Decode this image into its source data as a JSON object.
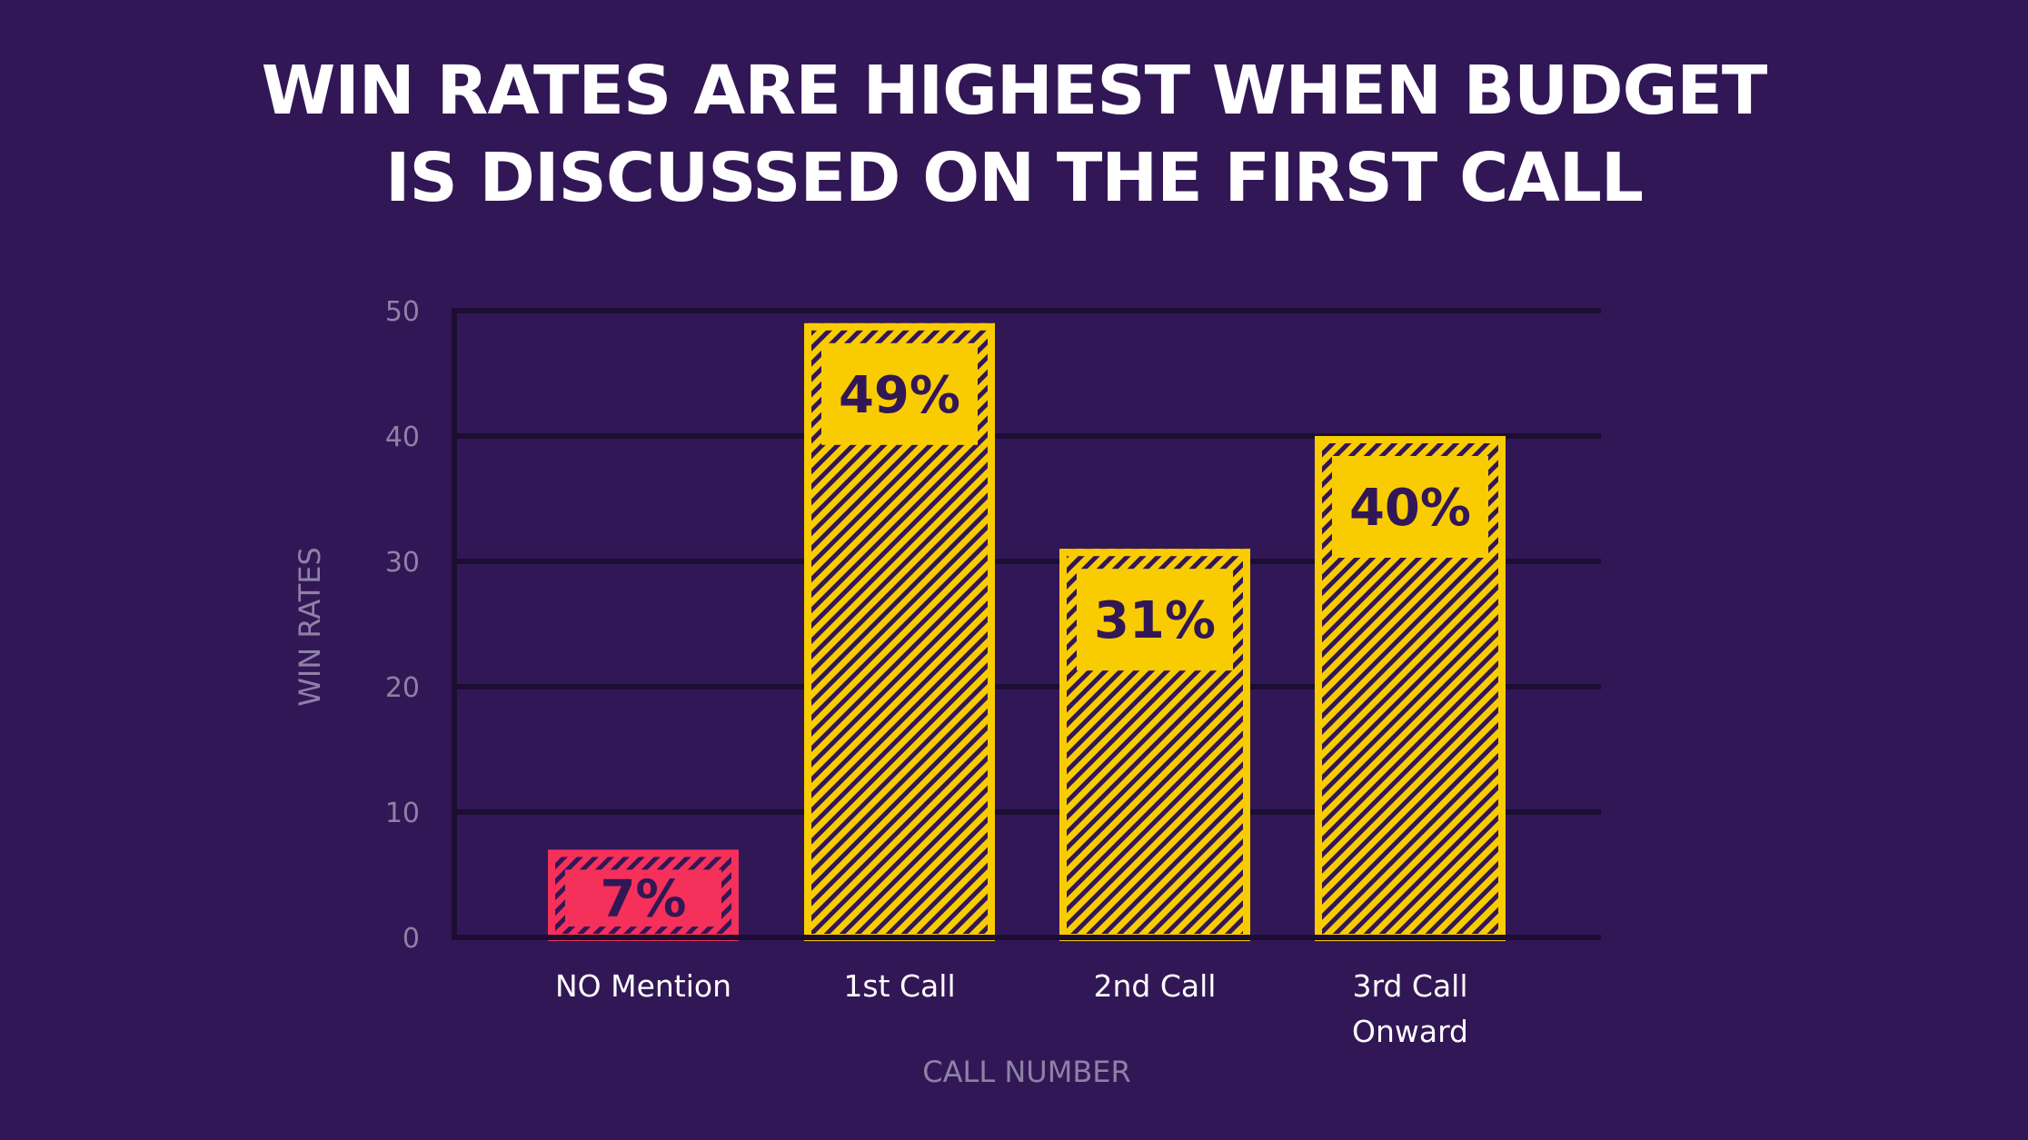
{
  "chart_data": {
    "type": "bar",
    "title_lines": [
      "WIN RATES ARE HIGHEST WHEN BUDGET",
      "IS DISCUSSED ON THE FIRST CALL"
    ],
    "xlabel": "CALL NUMBER",
    "ylabel": "WIN RATES",
    "ylim": [
      0,
      50
    ],
    "yticks": [
      0,
      10,
      20,
      30,
      40,
      50
    ],
    "grid": true,
    "categories": [
      [
        "NO Mention"
      ],
      [
        "1st Call"
      ],
      [
        "2nd Call"
      ],
      [
        "3rd Call",
        "Onward"
      ]
    ],
    "values": [
      7,
      49,
      31,
      40
    ],
    "data_labels": [
      "7%",
      "49%",
      "31%",
      "40%"
    ],
    "colors": [
      "#f5305a",
      "#f9cc01",
      "#f9cc01",
      "#f9cc01"
    ],
    "label_color": "#321756",
    "background": "#321756",
    "grid_color": "#1c0d33"
  }
}
